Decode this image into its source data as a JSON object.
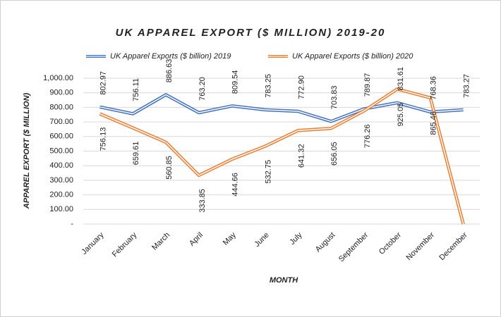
{
  "chart_data": {
    "type": "line",
    "title": "UK APPAREL EXPORT ($ MILLION) 2019-20",
    "xlabel": "MONTH",
    "ylabel": "APPAREL EXPORT ($ MILLION)",
    "categories": [
      "January",
      "February",
      "March",
      "April",
      "May",
      "June",
      "July",
      "August",
      "September",
      "October",
      "November",
      "December"
    ],
    "series": [
      {
        "name": "UK Apparel Exports ($ billion) 2019",
        "color": "#4472c4",
        "values": [
          802.97,
          756.11,
          886.63,
          763.2,
          809.54,
          783.25,
          772.9,
          703.83,
          789.87,
          831.61,
          768.36,
          783.27
        ],
        "value_labels": [
          "802.97",
          "756.11",
          "886.63",
          "763.20",
          "809.54",
          "783.25",
          "772.90",
          "703.83",
          "789.87",
          "831.61",
          "768.36",
          "783.27"
        ]
      },
      {
        "name": "UK Apparel Exports ($ billion) 2020",
        "color": "#ed7d31",
        "values": [
          756.13,
          659.61,
          560.85,
          333.85,
          444.66,
          532.75,
          641.32,
          656.05,
          776.26,
          925.05,
          865.46,
          0
        ],
        "value_labels": [
          "756.13",
          "659.61",
          "560.85",
          "333.85",
          "444.66",
          "532.75",
          "641.32",
          "656.05",
          "776.26",
          "925.05",
          "865.46",
          null
        ]
      }
    ],
    "ylim": [
      0,
      1000
    ],
    "yticks": [
      {
        "value": 0,
        "label": "-"
      },
      {
        "value": 100,
        "label": "100.00"
      },
      {
        "value": 200,
        "label": "200.00"
      },
      {
        "value": 300,
        "label": "300.00"
      },
      {
        "value": 400,
        "label": "400.00"
      },
      {
        "value": 500,
        "label": "500.00"
      },
      {
        "value": 600,
        "label": "600.00"
      },
      {
        "value": 700,
        "label": "700.00"
      },
      {
        "value": 800,
        "label": "800.00"
      },
      {
        "value": 900,
        "label": "900.00"
      },
      {
        "value": 1000,
        "label": "1,000.00"
      }
    ],
    "grid": true,
    "legend": "top"
  }
}
